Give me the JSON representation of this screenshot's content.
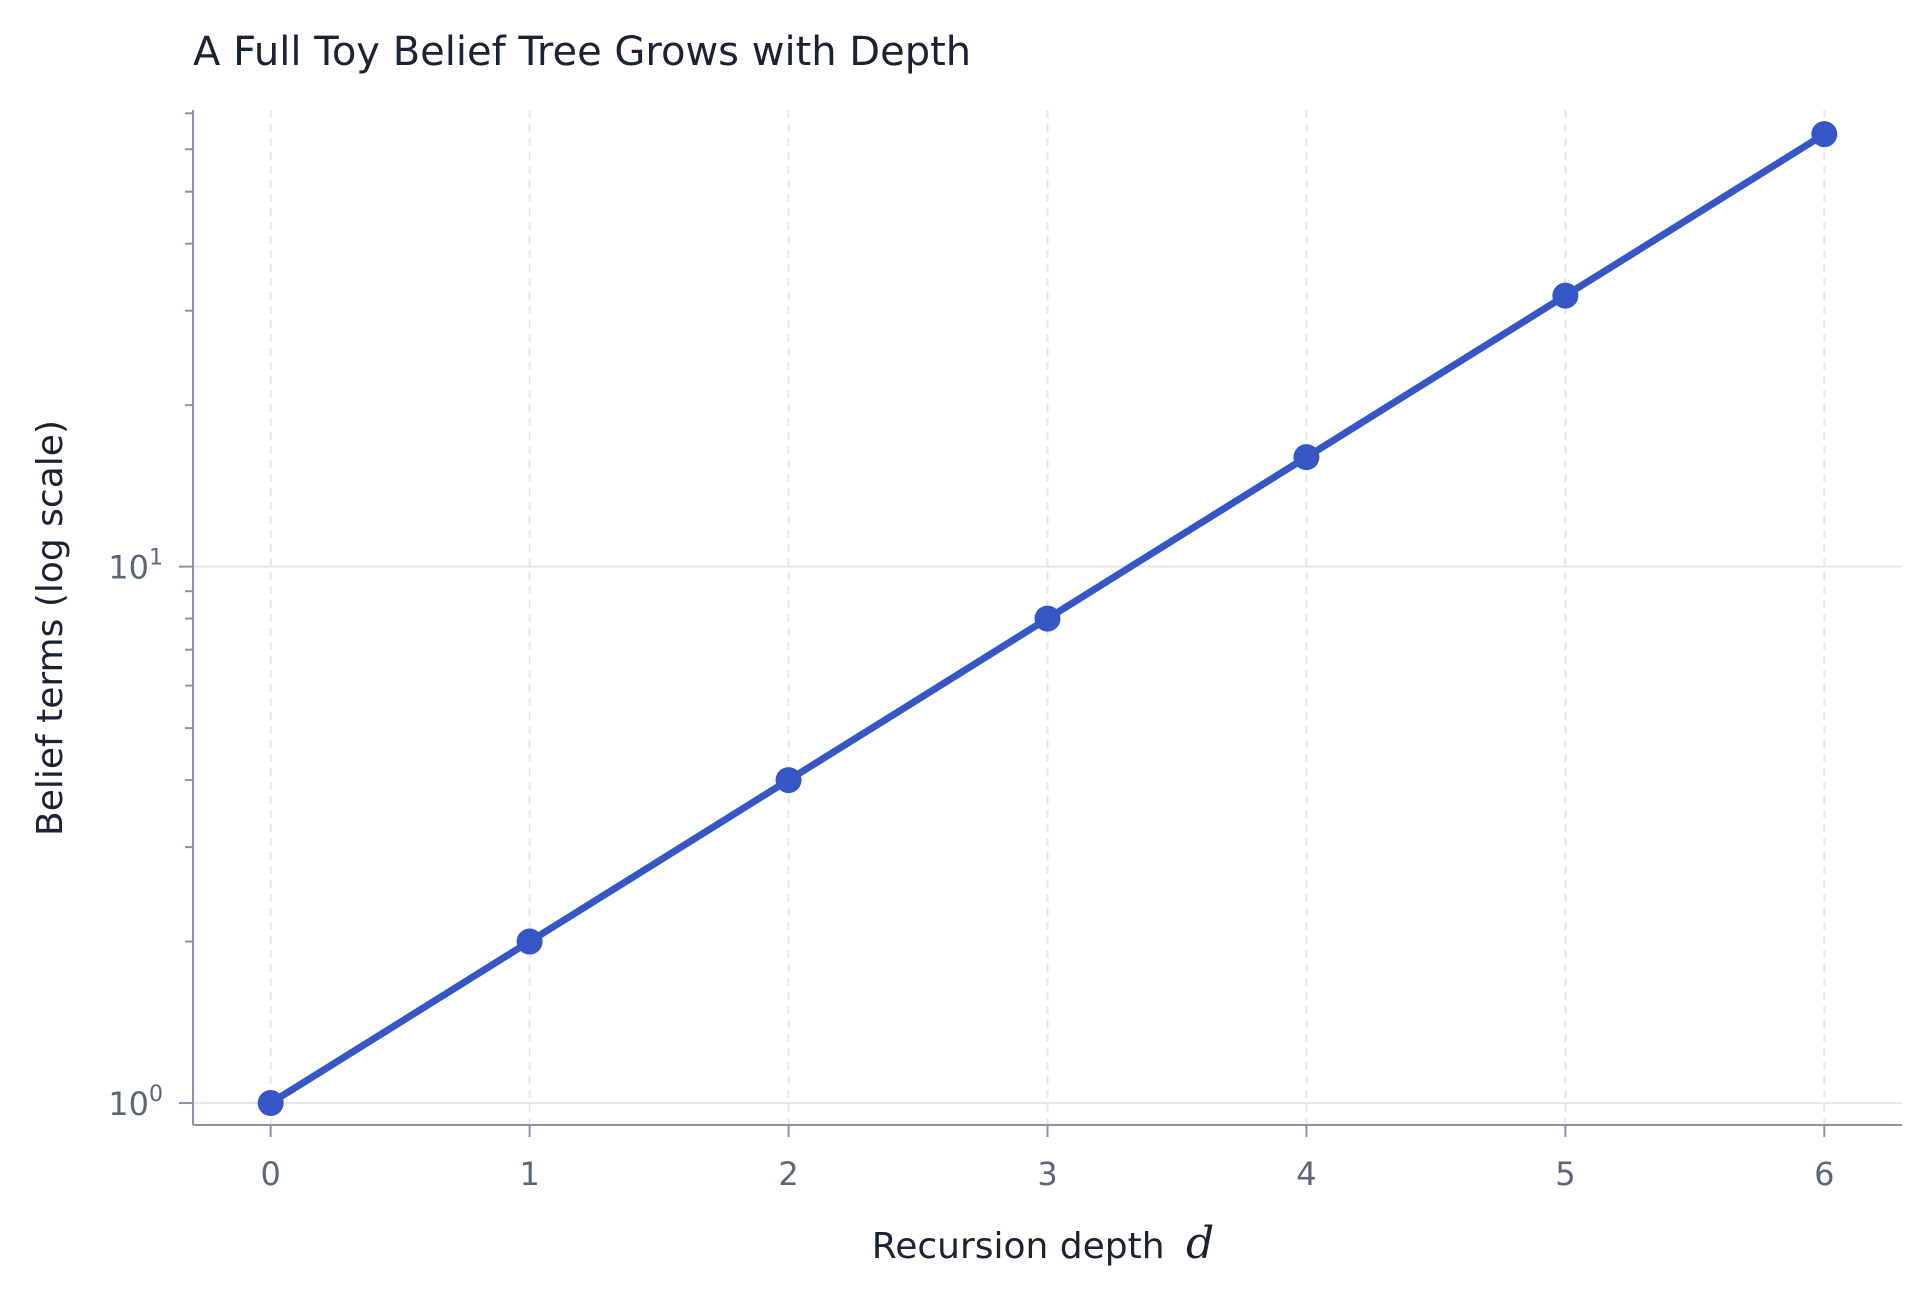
{
  "chart_data": {
    "type": "line",
    "title": "A Full Toy Belief Tree Grows with Depth",
    "xlabel": "Recursion depth",
    "xlabel_var": "d",
    "ylabel": "Belief terms (log scale)",
    "x": [
      0,
      1,
      2,
      3,
      4,
      5,
      6
    ],
    "series": [
      {
        "values": [
          1,
          2,
          4,
          8,
          16,
          32,
          64
        ]
      }
    ],
    "xlim": [
      -0.3,
      6.3
    ],
    "ylim": [
      0.91,
      71
    ],
    "yscale": "log",
    "x_ticks": [
      "0",
      "1",
      "2",
      "3",
      "4",
      "5",
      "6"
    ],
    "y_ticks": [
      {
        "value": 1,
        "base": "10",
        "exp": "0"
      },
      {
        "value": 10,
        "base": "10",
        "exp": "1"
      }
    ],
    "grid": true,
    "colors": {
      "line": "#3557c6",
      "grid": "#e2e7ee",
      "axis": "#8a93a6"
    }
  }
}
